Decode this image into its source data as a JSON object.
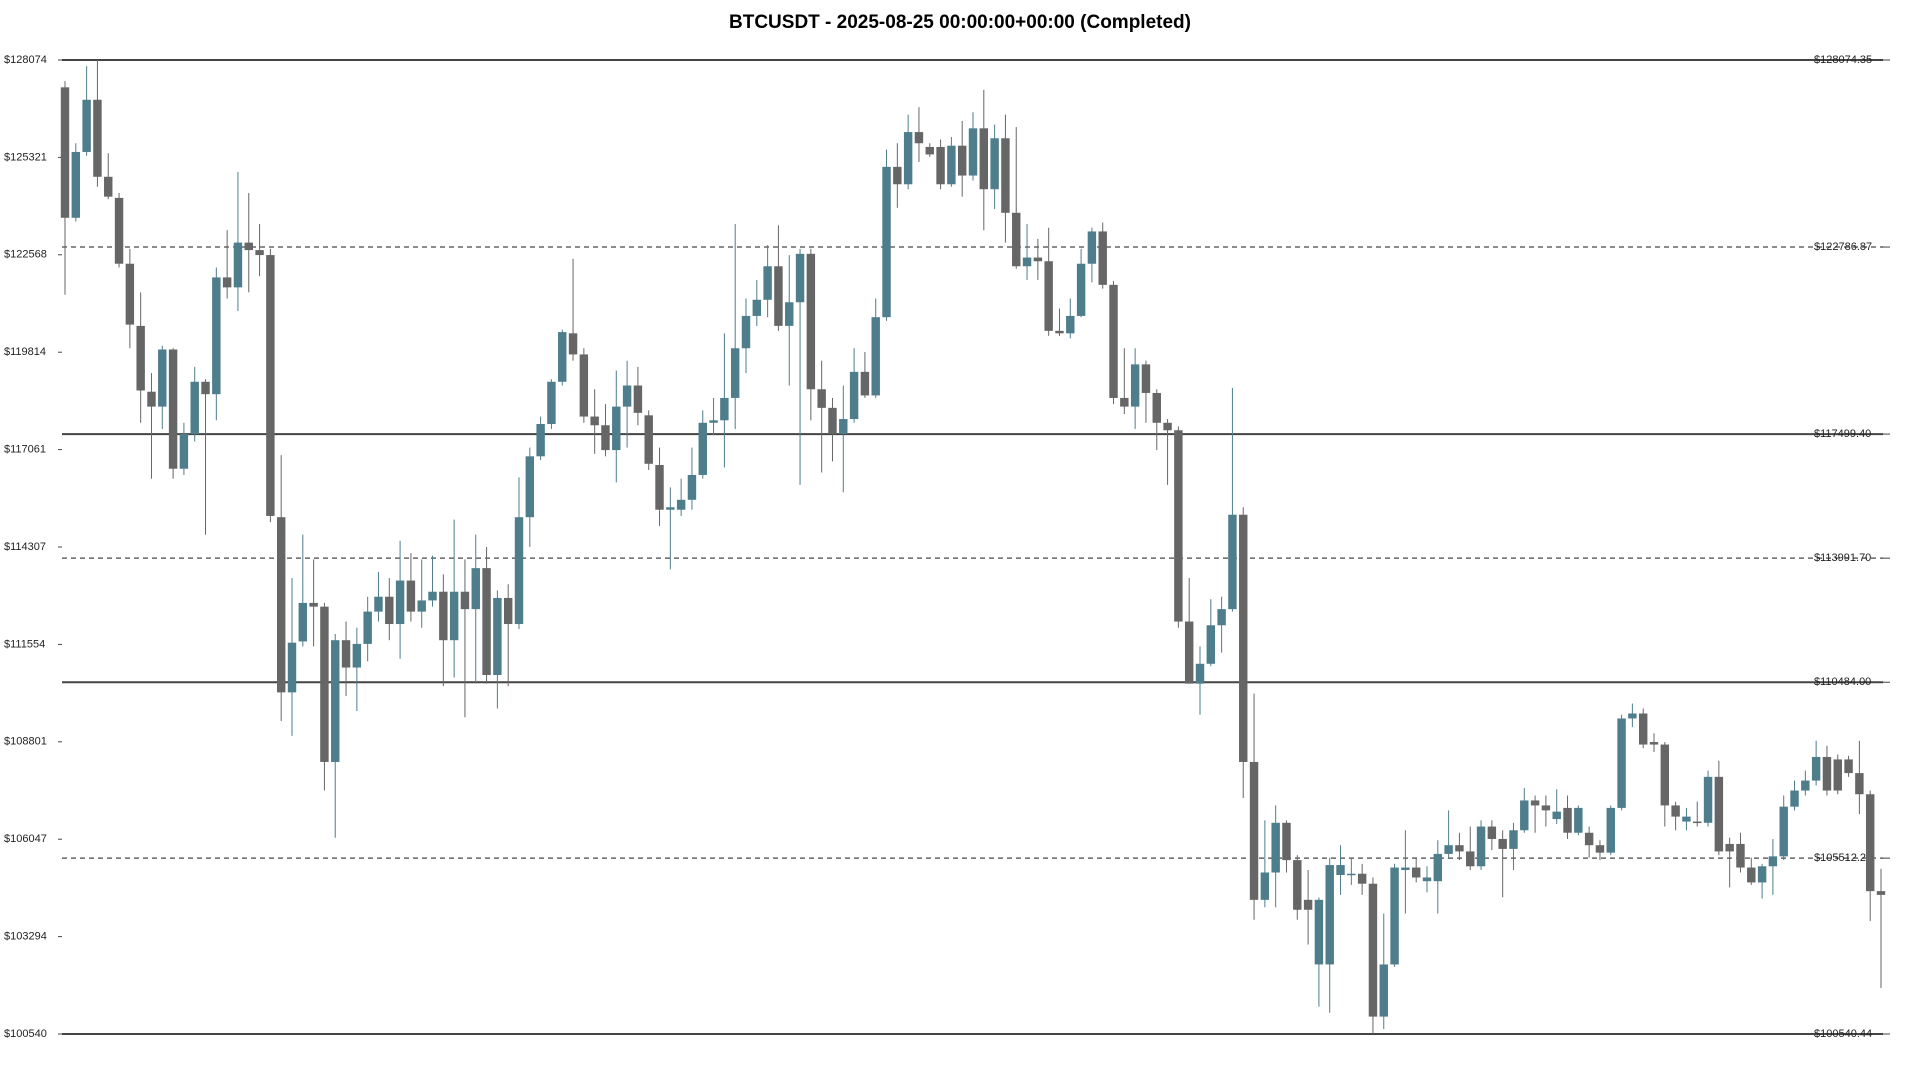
{
  "chart_data": {
    "type": "candlestick",
    "title": "BTCUSDT - 2025-08-25 00:00:00+00:00 (Completed)",
    "up_color": "#4e7d8c",
    "down_color": "#666666",
    "ylim": [
      100540.44,
      128074.35
    ],
    "yticks": [
      {
        "value": 128074,
        "label": "$128074"
      },
      {
        "value": 125321,
        "label": "$125321"
      },
      {
        "value": 122568,
        "label": "$122568"
      },
      {
        "value": 119814,
        "label": "$119814"
      },
      {
        "value": 117061,
        "label": "$117061"
      },
      {
        "value": 114307,
        "label": "$114307"
      },
      {
        "value": 111554,
        "label": "$111554"
      },
      {
        "value": 108801,
        "label": "$108801"
      },
      {
        "value": 106047,
        "label": "$106047"
      },
      {
        "value": 103294,
        "label": "$103294"
      },
      {
        "value": 100540,
        "label": "$100540"
      }
    ],
    "levels": [
      {
        "value": 128074.35,
        "label": "$128074.35",
        "style": "solid"
      },
      {
        "value": 122786.87,
        "label": "$122786.87",
        "style": "dashed"
      },
      {
        "value": 117499.4,
        "label": "$117499.40",
        "style": "solid"
      },
      {
        "value": 113991.7,
        "label": "$113991.70",
        "style": "dashed"
      },
      {
        "value": 110484.0,
        "label": "$110484.00",
        "style": "solid"
      },
      {
        "value": 105512.22,
        "label": "$105512.22",
        "style": "dashed"
      },
      {
        "value": 100540.44,
        "label": "$100540.44",
        "style": "solid"
      }
    ],
    "open": [
      127302,
      123614,
      125475,
      126950,
      124773,
      124176,
      122315,
      120558,
      118697,
      118276,
      119891,
      116520,
      117503,
      118978,
      118627,
      121928,
      121647,
      122912,
      122701,
      122560,
      115150,
      110198,
      111638,
      112727,
      112621,
      108231,
      111673,
      110900,
      111568,
      112481,
      112902,
      112130,
      113359,
      112481,
      112797,
      113043,
      111673,
      113043,
      112551,
      113710,
      110690,
      112867,
      112130,
      115150,
      116871,
      117784,
      118978,
      120348,
      119751,
      117995,
      117749,
      117047,
      118276,
      118873,
      118030,
      116625,
      115361,
      115361,
      115642,
      116344,
      117819,
      117889,
      118521,
      119926,
      120840,
      121296,
      122244,
      120558,
      121226,
      122595,
      118767,
      118241,
      117503,
      117925,
      119259,
      118592,
      120804,
      125054,
      124562,
      126037,
      125616,
      125616,
      124562,
      125651,
      124808,
      126143,
      124422,
      125862,
      123755,
      122244,
      122490,
      122385,
      120418,
      120348,
      120840,
      122315,
      123228,
      121718,
      118521,
      118276,
      119470,
      118662,
      117819,
      117608,
      112200,
      110444,
      111006,
      112095,
      112551,
      115220,
      108231,
      104333,
      105106,
      106511,
      105456,
      104333,
      102507,
      102507,
      105035,
      105035,
      105071,
      104789,
      101032,
      102507,
      105176,
      105246,
      104860,
      104860,
      105632,
      105878,
      105702,
      105281,
      106405,
      106054,
      105773,
      106300,
      107143,
      107002,
      106616,
      106932,
      106230,
      106230,
      105878,
      105667,
      106932,
      109460,
      109601,
      108793,
      108723,
      107002,
      106546,
      106546,
      106511,
      107810,
      105913,
      105913,
      105246,
      104825,
      105281,
      105562,
      106967,
      107423,
      107705,
      108372,
      108302,
      108302,
      107916,
      107318,
      104579
    ],
    "high": [
      127477,
      125721,
      127899,
      128074,
      125440,
      124316,
      122736,
      121506,
      119224,
      119997,
      119926,
      117819,
      119400,
      119048,
      122209,
      123263,
      124913,
      124316,
      123438,
      122736,
      116904,
      113429,
      114658,
      113956,
      112727,
      111848,
      112200,
      112024,
      112902,
      113605,
      113429,
      114483,
      114132,
      113956,
      114062,
      113535,
      115080,
      113956,
      114658,
      114307,
      113078,
      113254,
      116274,
      117117,
      117995,
      119048,
      120453,
      122455,
      119926,
      118767,
      118346,
      119294,
      119575,
      119400,
      118170,
      117117,
      115993,
      116239,
      117117,
      118170,
      118521,
      120348,
      123438,
      121331,
      121858,
      122841,
      123403,
      122560,
      122736,
      122736,
      119575,
      118521,
      118873,
      119926,
      119821,
      121331,
      125546,
      125721,
      126529,
      126740,
      125721,
      125827,
      125897,
      126353,
      126599,
      127231,
      126248,
      126529,
      126178,
      123438,
      123017,
      123333,
      121050,
      121331,
      122736,
      123333,
      123479,
      121823,
      119926,
      119926,
      119575,
      118767,
      117925,
      117714,
      113429,
      111497,
      112832,
      112902,
      118803,
      115431,
      110163,
      106581,
      107002,
      106581,
      105596,
      105176,
      104403,
      105527,
      105878,
      105527,
      105351,
      104965,
      103947,
      105351,
      106300,
      105527,
      105281,
      106019,
      106862,
      106230,
      106405,
      106581,
      106581,
      106300,
      106511,
      107494,
      107283,
      107283,
      107459,
      107283,
      107002,
      106405,
      106019,
      107002,
      109566,
      109882,
      109742,
      109039,
      108793,
      107108,
      106932,
      107108,
      107986,
      108267,
      106089,
      106230,
      105527,
      105351,
      106054,
      107283,
      107705,
      107986,
      108828,
      108688,
      108442,
      108407,
      108828,
      107423,
      105211
    ],
    "low": [
      121437,
      123509,
      125370,
      124492,
      124141,
      122209,
      119926,
      117819,
      116239,
      117644,
      116239,
      116344,
      117292,
      114658,
      117889,
      121331,
      120980,
      121506,
      121963,
      115009,
      109390,
      108969,
      111497,
      111497,
      107423,
      106089,
      110093,
      109671,
      111076,
      112200,
      111673,
      111146,
      112200,
      112024,
      112621,
      110374,
      110620,
      109496,
      110444,
      110444,
      109742,
      110374,
      111989,
      114307,
      116766,
      117644,
      118873,
      119575,
      117819,
      116941,
      116871,
      116133,
      117117,
      117749,
      116485,
      114904,
      113675,
      115185,
      115361,
      116239,
      117468,
      116555,
      117644,
      119224,
      120558,
      120804,
      120418,
      118873,
      116063,
      117889,
      116414,
      116730,
      115853,
      117819,
      118521,
      118521,
      120699,
      123895,
      124422,
      125194,
      125335,
      124422,
      124492,
      124211,
      124668,
      123263,
      123860,
      122912,
      122174,
      121858,
      121858,
      120277,
      120277,
      120207,
      120804,
      121788,
      121612,
      118346,
      118065,
      117644,
      117819,
      117047,
      116063,
      112024,
      110444,
      109566,
      110936,
      111322,
      112481,
      107213,
      103771,
      104122,
      104122,
      105106,
      103771,
      103069,
      101313,
      101138,
      104473,
      104755,
      104473,
      100540,
      100681,
      102437,
      103947,
      104825,
      104544,
      103947,
      105527,
      105456,
      105176,
      105176,
      105738,
      104403,
      105176,
      106230,
      106230,
      106405,
      106476,
      106054,
      106160,
      105527,
      105456,
      105596,
      106862,
      109214,
      108618,
      108512,
      106405,
      106300,
      106300,
      106405,
      106405,
      105596,
      104684,
      105106,
      104755,
      104368,
      104473,
      105456,
      106862,
      107283,
      107564,
      107283,
      107318,
      107810,
      106757,
      103736,
      101840
    ],
    "close": [
      123614,
      125475,
      126950,
      124773,
      124211,
      122315,
      120594,
      118732,
      118276,
      119891,
      116520,
      117503,
      118978,
      118627,
      121928,
      121647,
      122912,
      122701,
      122560,
      115185,
      110198,
      111603,
      112727,
      112621,
      108231,
      111673,
      110900,
      111568,
      112481,
      112902,
      112130,
      113359,
      112481,
      112797,
      113043,
      111673,
      113043,
      112551,
      113710,
      110690,
      112867,
      112130,
      115150,
      116871,
      117784,
      118978,
      120383,
      119751,
      117995,
      117749,
      117047,
      118276,
      118873,
      118100,
      116660,
      115361,
      115431,
      115642,
      116344,
      117819,
      117889,
      118521,
      119926,
      120840,
      121296,
      122244,
      120558,
      121226,
      122595,
      118767,
      118241,
      117503,
      117925,
      119259,
      118592,
      120804,
      125054,
      124562,
      126037,
      125721,
      125405,
      124562,
      125651,
      124808,
      126143,
      124422,
      125862,
      123755,
      122244,
      122490,
      122385,
      120418,
      120348,
      120840,
      122315,
      123228,
      121718,
      118521,
      118276,
      119470,
      118662,
      117819,
      117608,
      112200,
      110444,
      111006,
      112095,
      112551,
      115220,
      108231,
      104333,
      105106,
      106511,
      105456,
      104052,
      104052,
      104333,
      105316,
      105316,
      105071,
      104789,
      101032,
      102507,
      105246,
      105246,
      104965,
      104965,
      105632,
      105878,
      105702,
      105281,
      106405,
      106054,
      105773,
      106300,
      107143,
      107002,
      106862,
      106827,
      106230,
      106932,
      105878,
      105667,
      106932,
      109460,
      109601,
      108723,
      108723,
      107002,
      106686,
      106686,
      106511,
      107810,
      105702,
      105702,
      105246,
      104825,
      105281,
      105562,
      106967,
      107423,
      107705,
      108372,
      107423,
      107423,
      107916,
      107318,
      104579,
      104473
    ]
  }
}
